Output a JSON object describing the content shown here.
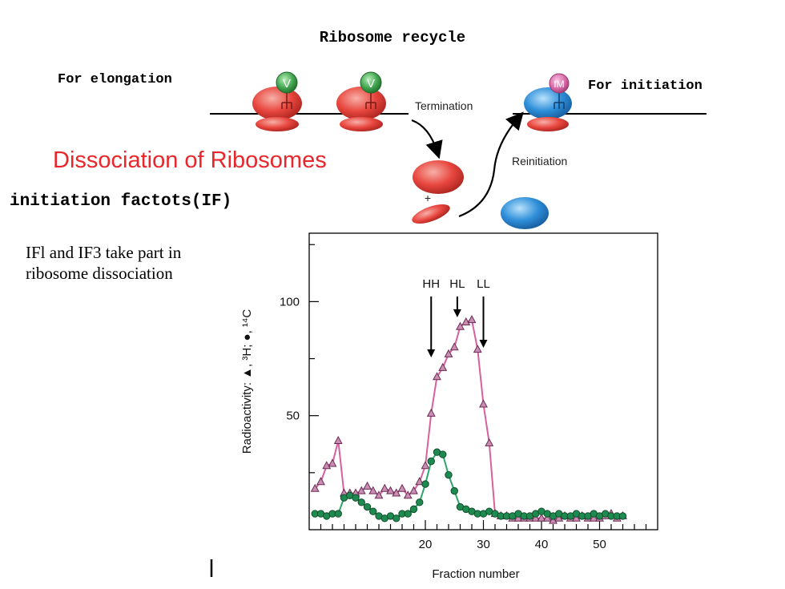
{
  "slide": {
    "title": "Ribosome recycle",
    "label_elongation": "For elongation",
    "label_initiation": "For initiation",
    "heading_red": "Dissociation of Ribosomes",
    "heading_factors": "initiation factots(IF)",
    "note_line1": "IFl and IF3 take part in",
    "note_line2": "ribosome dissociation"
  },
  "diagram": {
    "label_termination": "Termination",
    "label_reinitiation": "Reinitiation",
    "label_plus": "+",
    "tRNA_v": "V",
    "tRNA_fm": "fM",
    "colors": {
      "red_subunit": "#e8473f",
      "blue_subunit": "#2e8fd9",
      "green_trna": "#3fa34d",
      "pink_trna": "#d96aa8"
    }
  },
  "chart_data": {
    "type": "line",
    "xlabel": "Fraction number",
    "ylabel": "Radioactivity: ▲, ³H; ●, ¹⁴C",
    "xlim": [
      0,
      60
    ],
    "ylim": [
      0,
      130
    ],
    "xticks": [
      20,
      30,
      40,
      50
    ],
    "yticks": [
      50,
      100
    ],
    "peak_labels": [
      {
        "text": "HH",
        "x": 21
      },
      {
        "text": "HL",
        "x": 25.5
      },
      {
        "text": "LL",
        "x": 30
      }
    ],
    "series": [
      {
        "name": "³H",
        "marker": "triangle",
        "color": "#d8609e",
        "fill": "#c98fb0",
        "x": [
          1,
          2,
          3,
          4,
          5,
          6,
          7,
          8,
          9,
          10,
          11,
          12,
          13,
          14,
          15,
          16,
          17,
          18,
          19,
          20,
          21,
          22,
          23,
          24,
          25,
          26,
          27,
          28,
          29,
          30,
          31,
          32,
          33,
          34,
          35,
          36,
          37,
          38,
          39,
          40,
          41,
          42,
          43,
          44,
          45,
          46,
          47,
          48,
          49,
          50,
          51,
          52,
          53,
          54
        ],
        "y": [
          18,
          21,
          28,
          29,
          39,
          16,
          16,
          16,
          17,
          19,
          17,
          15,
          18,
          17,
          16,
          18,
          15,
          17,
          21,
          28,
          51,
          67,
          71,
          77,
          80,
          89,
          91,
          92,
          79,
          55,
          38,
          7,
          6,
          6,
          5,
          5,
          5,
          5,
          5,
          5,
          5,
          4,
          5,
          6,
          5,
          5,
          6,
          5,
          5,
          5,
          6,
          7,
          5,
          6
        ]
      },
      {
        "name": "¹⁴C",
        "marker": "circle",
        "color": "#2ea56b",
        "fill": "#1f8a4f",
        "x": [
          1,
          2,
          3,
          4,
          5,
          6,
          7,
          8,
          9,
          10,
          11,
          12,
          13,
          14,
          15,
          16,
          17,
          18,
          19,
          20,
          21,
          22,
          23,
          24,
          25,
          26,
          27,
          28,
          29,
          30,
          31,
          32,
          33,
          34,
          35,
          36,
          37,
          38,
          39,
          40,
          41,
          42,
          43,
          44,
          45,
          46,
          47,
          48,
          49,
          50,
          51,
          52,
          53,
          54
        ],
        "y": [
          7,
          7,
          6,
          7,
          7,
          14,
          15,
          14,
          12,
          10,
          8,
          6,
          5,
          6,
          5,
          7,
          7,
          9,
          12,
          20,
          30,
          34,
          33,
          24,
          17,
          10,
          9,
          8,
          7,
          7,
          8,
          7,
          6,
          6,
          6,
          7,
          6,
          6,
          7,
          8,
          7,
          6,
          7,
          6,
          6,
          7,
          6,
          6,
          7,
          6,
          7,
          6,
          6,
          6
        ]
      }
    ]
  }
}
